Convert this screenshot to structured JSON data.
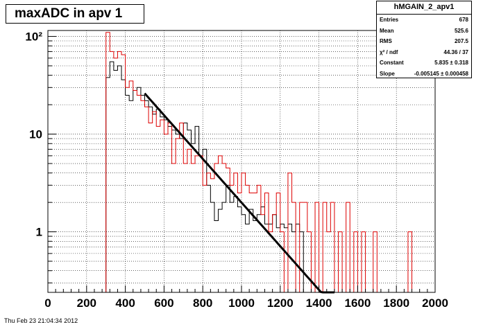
{
  "chart_data": {
    "type": "histogram",
    "title": "maxADC in apv 1",
    "xlabel": "",
    "ylabel": "",
    "xlim": [
      0,
      2000
    ],
    "ylim": [
      0.24,
      115
    ],
    "y_scale": "log",
    "bin_width": 20,
    "x_ticks": [
      0,
      200,
      400,
      600,
      800,
      1000,
      1200,
      1400,
      1600,
      1800,
      2000
    ],
    "x_tick_labels": [
      "0",
      "200",
      "400",
      "600",
      "800",
      "1000",
      "1200",
      "1400",
      "1600",
      "1800",
      "2000"
    ],
    "y_ticks": [
      1,
      10,
      100
    ],
    "y_tick_labels": [
      "1",
      "10",
      "10²"
    ],
    "grid": true,
    "series": [
      {
        "color": "#000000",
        "bins": [
          {
            "x": 300,
            "y": 38
          },
          {
            "x": 320,
            "y": 55
          },
          {
            "x": 340,
            "y": 45
          },
          {
            "x": 360,
            "y": 50
          },
          {
            "x": 380,
            "y": 36
          },
          {
            "x": 400,
            "y": 25
          },
          {
            "x": 420,
            "y": 22
          },
          {
            "x": 440,
            "y": 28
          },
          {
            "x": 460,
            "y": 30
          },
          {
            "x": 480,
            "y": 25
          },
          {
            "x": 500,
            "y": 22
          },
          {
            "x": 520,
            "y": 19
          },
          {
            "x": 540,
            "y": 16
          },
          {
            "x": 560,
            "y": 18
          },
          {
            "x": 580,
            "y": 15
          },
          {
            "x": 600,
            "y": 14
          },
          {
            "x": 620,
            "y": 12
          },
          {
            "x": 640,
            "y": 11
          },
          {
            "x": 660,
            "y": 10
          },
          {
            "x": 680,
            "y": 9
          },
          {
            "x": 700,
            "y": 13
          },
          {
            "x": 720,
            "y": 11
          },
          {
            "x": 740,
            "y": 8
          },
          {
            "x": 760,
            "y": 12
          },
          {
            "x": 780,
            "y": 6
          },
          {
            "x": 800,
            "y": 7
          },
          {
            "x": 820,
            "y": 3
          },
          {
            "x": 840,
            "y": 2
          },
          {
            "x": 860,
            "y": 1.3
          },
          {
            "x": 880,
            "y": 1.7
          },
          {
            "x": 900,
            "y": 2
          },
          {
            "x": 920,
            "y": 3
          },
          {
            "x": 940,
            "y": 2
          },
          {
            "x": 960,
            "y": 2.3
          },
          {
            "x": 980,
            "y": 1.8
          },
          {
            "x": 1000,
            "y": 1.5
          },
          {
            "x": 1020,
            "y": 1.2
          },
          {
            "x": 1040,
            "y": 1.7
          },
          {
            "x": 1060,
            "y": 1.3
          },
          {
            "x": 1080,
            "y": 1.5
          },
          {
            "x": 1100,
            "y": 1.8
          },
          {
            "x": 1120,
            "y": 1.2
          },
          {
            "x": 1140,
            "y": 1.2
          },
          {
            "x": 1160,
            "y": 1.5
          },
          {
            "x": 1180,
            "y": 1.1
          },
          {
            "x": 1200,
            "y": 1.2
          },
          {
            "x": 1220,
            "y": 1.1
          },
          {
            "x": 1240,
            "y": 1.2
          },
          {
            "x": 1260,
            "y": 1
          },
          {
            "x": 1280,
            "y": 1.2
          },
          {
            "x": 1300,
            "y": 1
          }
        ]
      },
      {
        "color": "#dd0000",
        "bins": [
          {
            "x": 280,
            "y": 0.24
          },
          {
            "x": 300,
            "y": 110
          },
          {
            "x": 320,
            "y": 70
          },
          {
            "x": 340,
            "y": 60
          },
          {
            "x": 360,
            "y": 70
          },
          {
            "x": 380,
            "y": 65
          },
          {
            "x": 400,
            "y": 30
          },
          {
            "x": 420,
            "y": 35
          },
          {
            "x": 440,
            "y": 28
          },
          {
            "x": 460,
            "y": 25
          },
          {
            "x": 480,
            "y": 22
          },
          {
            "x": 500,
            "y": 19
          },
          {
            "x": 520,
            "y": 13
          },
          {
            "x": 540,
            "y": 17
          },
          {
            "x": 560,
            "y": 12
          },
          {
            "x": 580,
            "y": 14
          },
          {
            "x": 600,
            "y": 10
          },
          {
            "x": 620,
            "y": 13
          },
          {
            "x": 640,
            "y": 5
          },
          {
            "x": 660,
            "y": 9
          },
          {
            "x": 680,
            "y": 13
          },
          {
            "x": 700,
            "y": 5
          },
          {
            "x": 720,
            "y": 7
          },
          {
            "x": 740,
            "y": 5
          },
          {
            "x": 760,
            "y": 6
          },
          {
            "x": 780,
            "y": 6
          },
          {
            "x": 800,
            "y": 3
          },
          {
            "x": 820,
            "y": 4
          },
          {
            "x": 840,
            "y": 3.5
          },
          {
            "x": 860,
            "y": 5
          },
          {
            "x": 880,
            "y": 6
          },
          {
            "x": 900,
            "y": 5
          },
          {
            "x": 920,
            "y": 4.5
          },
          {
            "x": 940,
            "y": 3
          },
          {
            "x": 960,
            "y": 4
          },
          {
            "x": 980,
            "y": 2.5
          },
          {
            "x": 1000,
            "y": 4
          },
          {
            "x": 1020,
            "y": 3
          },
          {
            "x": 1040,
            "y": 2.5
          },
          {
            "x": 1060,
            "y": 2.5
          },
          {
            "x": 1080,
            "y": 3
          },
          {
            "x": 1100,
            "y": 1.5
          },
          {
            "x": 1120,
            "y": 2.5
          },
          {
            "x": 1140,
            "y": 1
          },
          {
            "x": 1160,
            "y": 1.5
          },
          {
            "x": 1180,
            "y": 2.5
          },
          {
            "x": 1200,
            "y": 1
          },
          {
            "x": 1220,
            "y": 0.24
          },
          {
            "x": 1240,
            "y": 4
          },
          {
            "x": 1260,
            "y": 2
          },
          {
            "x": 1280,
            "y": 0.24
          },
          {
            "x": 1300,
            "y": 2
          },
          {
            "x": 1320,
            "y": 2
          },
          {
            "x": 1340,
            "y": 1
          },
          {
            "x": 1360,
            "y": 0.24
          },
          {
            "x": 1380,
            "y": 2
          },
          {
            "x": 1400,
            "y": 0.24
          },
          {
            "x": 1420,
            "y": 2
          },
          {
            "x": 1440,
            "y": 1
          },
          {
            "x": 1460,
            "y": 2
          },
          {
            "x": 1480,
            "y": 0.24
          },
          {
            "x": 1500,
            "y": 1
          },
          {
            "x": 1520,
            "y": 0.24
          },
          {
            "x": 1540,
            "y": 2
          },
          {
            "x": 1560,
            "y": 0.24
          },
          {
            "x": 1580,
            "y": 1
          },
          {
            "x": 1600,
            "y": 0.24
          },
          {
            "x": 1620,
            "y": 1
          },
          {
            "x": 1640,
            "y": 0.24
          },
          {
            "x": 1660,
            "y": 0.24
          },
          {
            "x": 1680,
            "y": 1
          },
          {
            "x": 1700,
            "y": 0.24
          },
          {
            "x": 1720,
            "y": 0.24
          },
          {
            "x": 1740,
            "y": 0.24
          },
          {
            "x": 1760,
            "y": 0.24
          },
          {
            "x": 1780,
            "y": 0.24
          },
          {
            "x": 1800,
            "y": 0.24
          },
          {
            "x": 1820,
            "y": 0.24
          },
          {
            "x": 1840,
            "y": 0.24
          },
          {
            "x": 1860,
            "y": 1
          },
          {
            "x": 1880,
            "y": 0.24
          }
        ]
      }
    ],
    "fit": {
      "function": "exponential",
      "color": "#000000",
      "x": [
        500,
        1480
      ],
      "constant": 5.835,
      "slope": -0.005145
    },
    "stats": {
      "title": "hMGAIN_2_apv1",
      "rows": [
        {
          "label": "Entries",
          "value": "678"
        },
        {
          "label": "Mean",
          "value": "525.6"
        },
        {
          "label": "RMS",
          "value": "207.5"
        },
        {
          "label": "χ² / ndf",
          "value": "44.36 / 37"
        },
        {
          "label": "Constant",
          "value": "5.835 ± 0.318"
        },
        {
          "label": "Slope",
          "value": "-0.005145 ± 0.000458"
        }
      ]
    },
    "footer": "Thu Feb 23 21:04:34 2012"
  }
}
